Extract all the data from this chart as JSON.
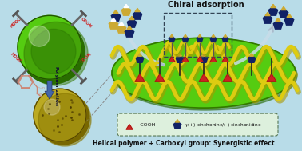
{
  "bg_color": "#b8dce8",
  "title_text": "Chiral adsorption",
  "bottom_text2": "Helical polymer + Carboxyl group: Synergistic effect",
  "polymerization_label": "Polymerization",
  "green_sphere_color": "#55cc11",
  "yellow_sphere_color": "#bbaa22",
  "cooh_color": "#cc2222",
  "arrow_color": "#3355aa",
  "helix_color": "#ddcc11",
  "helix_shadow": "#aa9900",
  "green_platform_color": "#55cc11",
  "molecule_dark": "#112266",
  "molecule_gold": "#ccaa33"
}
